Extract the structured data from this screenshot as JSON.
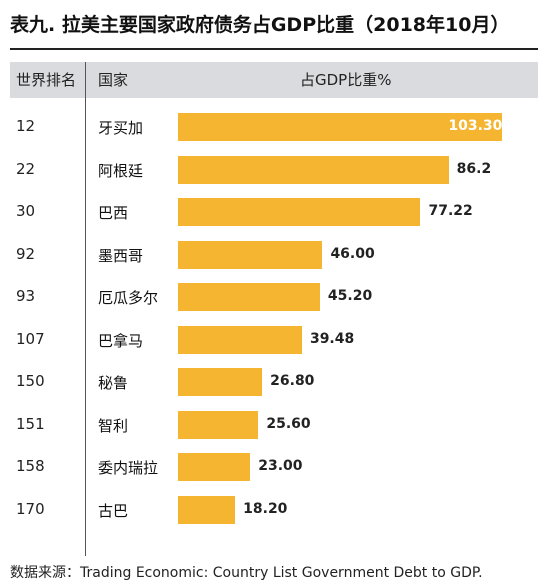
{
  "title": "表九. 拉美主要国家政府债务占GDP比重（2018年10月）",
  "header": {
    "rank": "世界排名",
    "country": "国家",
    "metric": "占GDP比重%"
  },
  "chart_data": {
    "type": "bar",
    "title": "表九. 拉美主要国家政府债务占GDP比重（2018年10月）",
    "xlabel": "",
    "ylabel": "占GDP比重%",
    "ranks": [
      "12",
      "22",
      "30",
      "92",
      "93",
      "107",
      "150",
      "151",
      "158",
      "170"
    ],
    "categories": [
      "牙买加",
      "阿根廷",
      "巴西",
      "墨西哥",
      "厄瓜多尔",
      "巴拿马",
      "秘鲁",
      "智利",
      "委内瑞拉",
      "古巴"
    ],
    "values": [
      103.3,
      86.2,
      77.22,
      46.0,
      45.2,
      39.48,
      26.8,
      25.6,
      23.0,
      18.2
    ],
    "labels": [
      "103.30",
      "86.2",
      "77.22",
      "46.00",
      "45.20",
      "39.48",
      "26.80",
      "25.60",
      "23.00",
      "18.20"
    ],
    "bar_color": "#f5b531"
  },
  "source": "数据来源：Trading Economic: Country List Government Debt to GDP."
}
